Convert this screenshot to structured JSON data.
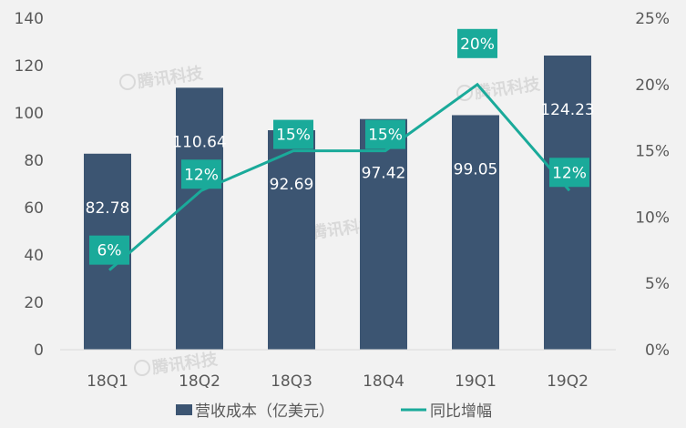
{
  "chart_data": {
    "type": "bar",
    "categories": [
      "18Q1",
      "18Q2",
      "18Q3",
      "18Q4",
      "19Q1",
      "19Q2"
    ],
    "series": [
      {
        "name": "营收成本（亿美元）",
        "type": "bar",
        "axis": "left",
        "values": [
          82.78,
          110.64,
          92.69,
          97.42,
          99.05,
          124.23
        ],
        "labels": [
          "82.78",
          "110.64",
          "92.69",
          "97.42",
          "99.05",
          "124.23"
        ],
        "color": "#3c5572"
      },
      {
        "name": "同比增幅",
        "type": "line",
        "axis": "right",
        "values": [
          6,
          12,
          15,
          15,
          20,
          12
        ],
        "labels": [
          "6%",
          "12%",
          "15%",
          "15%",
          "20%",
          "12%"
        ],
        "color": "#1aaa9a"
      }
    ],
    "y_left": {
      "range": [
        0,
        140
      ],
      "ticks": [
        0,
        20,
        40,
        60,
        80,
        100,
        120,
        140
      ],
      "tick_labels": [
        "0",
        "20",
        "40",
        "60",
        "80",
        "100",
        "120",
        "140"
      ]
    },
    "y_right": {
      "range": [
        0,
        25
      ],
      "ticks": [
        0,
        5,
        10,
        15,
        20,
        25
      ],
      "tick_labels": [
        "0%",
        "5%",
        "10%",
        "15%",
        "20%",
        "25%"
      ]
    },
    "legend_position": "bottom",
    "grid": false,
    "watermark": "腾讯科技"
  }
}
